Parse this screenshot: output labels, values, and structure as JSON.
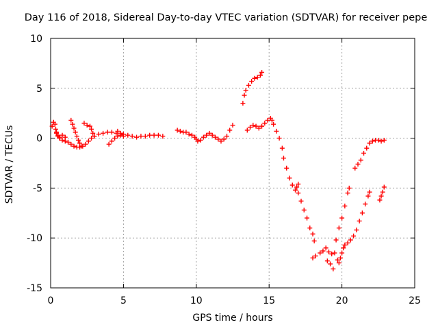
{
  "chart_data": {
    "type": "scatter",
    "title": "Day 116 of 2018, Sidereal Day-to-day VTEC variation (SDTVAR) for receiver pepe",
    "xlabel": "GPS time / hours",
    "ylabel": "SDTVAR / TECUs",
    "xlim": [
      0,
      25
    ],
    "ylim": [
      -15,
      10
    ],
    "xticks": [
      "0",
      "5",
      "10",
      "15",
      "20",
      "25"
    ],
    "yticks": [
      "10",
      "5",
      "0",
      "-5",
      "-10",
      "-15"
    ],
    "xtick_values": [
      0,
      5,
      10,
      15,
      20,
      25
    ],
    "ytick_values": [
      10,
      5,
      0,
      -5,
      -10,
      -15
    ],
    "grid": true,
    "marker": "+",
    "color": "#ff0000",
    "series": [
      {
        "values": [
          [
            0.1,
            1.2
          ],
          [
            0.2,
            1.6
          ],
          [
            0.3,
            1.4
          ],
          [
            0.35,
            0.9
          ],
          [
            0.4,
            0.5
          ],
          [
            0.5,
            0.2
          ],
          [
            0.6,
            0.0
          ],
          [
            0.8,
            -0.2
          ],
          [
            1.0,
            -0.3
          ],
          [
            1.2,
            -0.4
          ],
          [
            1.4,
            -0.6
          ],
          [
            1.6,
            -0.8
          ],
          [
            1.8,
            -0.9
          ],
          [
            2.0,
            -0.9
          ],
          [
            2.2,
            -0.8
          ],
          [
            2.4,
            -0.6
          ],
          [
            2.6,
            -0.3
          ],
          [
            2.8,
            0.0
          ],
          [
            3.0,
            0.2
          ],
          [
            3.3,
            0.4
          ],
          [
            3.6,
            0.5
          ],
          [
            3.9,
            0.6
          ],
          [
            4.2,
            0.6
          ],
          [
            4.5,
            0.5
          ],
          [
            0.4,
            0.6
          ],
          [
            0.5,
            0.3
          ],
          [
            0.6,
            0.1
          ],
          [
            0.8,
            0.3
          ],
          [
            1.0,
            0.1
          ],
          [
            1.4,
            1.8
          ],
          [
            1.5,
            1.4
          ],
          [
            1.6,
            1.0
          ],
          [
            1.7,
            0.6
          ],
          [
            1.8,
            0.2
          ],
          [
            1.9,
            -0.2
          ],
          [
            2.0,
            -0.5
          ],
          [
            2.1,
            -0.8
          ],
          [
            2.3,
            1.5
          ],
          [
            2.5,
            1.3
          ],
          [
            2.7,
            1.2
          ],
          [
            2.8,
            0.9
          ],
          [
            2.9,
            0.5
          ],
          [
            3.0,
            0.2
          ],
          [
            4.0,
            -0.6
          ],
          [
            4.2,
            -0.3
          ],
          [
            4.4,
            0.0
          ],
          [
            4.6,
            0.2
          ],
          [
            4.8,
            0.3
          ],
          [
            5.0,
            0.2
          ],
          [
            4.6,
            0.7
          ],
          [
            4.8,
            0.5
          ],
          [
            5.0,
            0.4
          ],
          [
            5.3,
            0.3
          ],
          [
            5.6,
            0.2
          ],
          [
            5.9,
            0.1
          ],
          [
            6.2,
            0.2
          ],
          [
            6.5,
            0.2
          ],
          [
            6.8,
            0.3
          ],
          [
            7.1,
            0.3
          ],
          [
            7.4,
            0.3
          ],
          [
            7.7,
            0.2
          ],
          [
            8.7,
            0.8
          ],
          [
            8.9,
            0.7
          ],
          [
            9.1,
            0.6
          ],
          [
            9.3,
            0.6
          ],
          [
            9.5,
            0.4
          ],
          [
            9.7,
            0.3
          ],
          [
            9.9,
            0.1
          ],
          [
            10.0,
            -0.1
          ],
          [
            10.1,
            -0.3
          ],
          [
            10.3,
            -0.2
          ],
          [
            10.5,
            0.1
          ],
          [
            10.7,
            0.3
          ],
          [
            10.9,
            0.5
          ],
          [
            11.1,
            0.3
          ],
          [
            11.3,
            0.1
          ],
          [
            11.5,
            -0.1
          ],
          [
            11.7,
            -0.3
          ],
          [
            11.9,
            -0.1
          ],
          [
            12.1,
            0.2
          ],
          [
            12.3,
            0.8
          ],
          [
            12.5,
            1.3
          ],
          [
            13.2,
            3.5
          ],
          [
            13.3,
            4.3
          ],
          [
            13.4,
            4.8
          ],
          [
            13.6,
            5.3
          ],
          [
            13.8,
            5.7
          ],
          [
            14.0,
            6.0
          ],
          [
            14.2,
            6.1
          ],
          [
            14.4,
            6.3
          ],
          [
            14.5,
            6.6
          ],
          [
            13.5,
            0.8
          ],
          [
            13.7,
            1.1
          ],
          [
            13.9,
            1.3
          ],
          [
            14.1,
            1.2
          ],
          [
            14.3,
            1.0
          ],
          [
            14.5,
            1.2
          ],
          [
            14.7,
            1.5
          ],
          [
            14.9,
            1.8
          ],
          [
            15.1,
            2.0
          ],
          [
            15.2,
            1.8
          ],
          [
            15.3,
            1.4
          ],
          [
            15.5,
            0.7
          ],
          [
            15.7,
            0.0
          ],
          [
            15.9,
            -1.0
          ],
          [
            16.0,
            -2.0
          ],
          [
            16.2,
            -3.0
          ],
          [
            16.4,
            -4.0
          ],
          [
            16.6,
            -4.7
          ],
          [
            16.8,
            -5.2
          ],
          [
            16.9,
            -4.9
          ],
          [
            17.0,
            -4.6
          ],
          [
            17.0,
            -5.5
          ],
          [
            17.2,
            -6.3
          ],
          [
            17.4,
            -7.2
          ],
          [
            17.6,
            -8.0
          ],
          [
            17.8,
            -9.0
          ],
          [
            18.0,
            -9.6
          ],
          [
            18.1,
            -10.3
          ],
          [
            18.0,
            -12.0
          ],
          [
            18.2,
            -11.8
          ],
          [
            18.5,
            -11.5
          ],
          [
            18.7,
            -11.3
          ],
          [
            18.9,
            -11.0
          ],
          [
            19.1,
            -11.4
          ],
          [
            19.3,
            -11.6
          ],
          [
            19.4,
            -13.1
          ],
          [
            19.2,
            -12.6
          ],
          [
            19.0,
            -12.3
          ],
          [
            19.5,
            -11.5
          ],
          [
            19.7,
            -12.2
          ],
          [
            19.8,
            -12.5
          ],
          [
            19.9,
            -12.0
          ],
          [
            20.0,
            -11.5
          ],
          [
            20.1,
            -11.0
          ],
          [
            20.2,
            -10.7
          ],
          [
            20.4,
            -10.5
          ],
          [
            20.6,
            -10.2
          ],
          [
            20.8,
            -9.8
          ],
          [
            21.0,
            -9.2
          ],
          [
            21.2,
            -8.3
          ],
          [
            21.4,
            -7.5
          ],
          [
            21.6,
            -6.6
          ],
          [
            21.8,
            -5.8
          ],
          [
            21.9,
            -5.4
          ],
          [
            19.6,
            -10.2
          ],
          [
            19.8,
            -9.0
          ],
          [
            20.0,
            -8.0
          ],
          [
            20.2,
            -6.8
          ],
          [
            20.4,
            -5.5
          ],
          [
            20.5,
            -5.0
          ],
          [
            20.9,
            -3.0
          ],
          [
            21.1,
            -2.6
          ],
          [
            21.3,
            -2.2
          ],
          [
            21.5,
            -1.5
          ],
          [
            21.7,
            -1.0
          ],
          [
            21.9,
            -0.5
          ],
          [
            22.1,
            -0.3
          ],
          [
            22.3,
            -0.2
          ],
          [
            22.5,
            -0.2
          ],
          [
            22.7,
            -0.3
          ],
          [
            22.9,
            -0.2
          ],
          [
            22.6,
            -6.2
          ],
          [
            22.7,
            -5.8
          ],
          [
            22.8,
            -5.4
          ],
          [
            22.9,
            -4.9
          ]
        ]
      }
    ]
  }
}
